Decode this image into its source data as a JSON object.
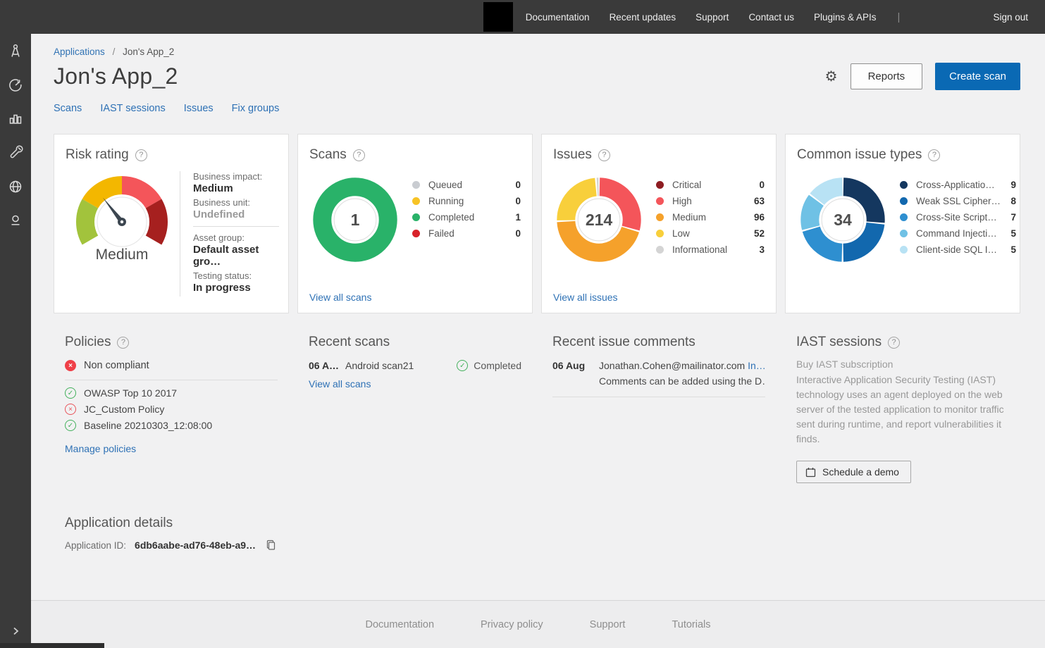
{
  "topnav": {
    "links": [
      "Documentation",
      "Recent updates",
      "Support",
      "Contact us",
      "Plugins & APIs"
    ],
    "signout": "Sign out"
  },
  "breadcrumb": {
    "parent": "Applications",
    "separator": "/",
    "current": "Jon's App_2"
  },
  "header": {
    "title": "Jon's App_2",
    "reports_label": "Reports",
    "create_scan_label": "Create scan"
  },
  "tabs": [
    {
      "label": "Scans"
    },
    {
      "label": "IAST sessions"
    },
    {
      "label": "Issues"
    },
    {
      "label": "Fix groups"
    }
  ],
  "risk_card": {
    "business_impact_label": "Business impact:",
    "business_impact": "Medium",
    "business_unit_label": "Business unit:",
    "business_unit": "Undefined",
    "asset_group_label": "Asset group:",
    "asset_group": "Default asset gro…",
    "testing_status_label": "Testing status:",
    "testing_status": "In progress"
  },
  "links": {
    "view_all_scans": "View all scans",
    "view_all_issues": "View all issues",
    "manage_policies": "Manage policies"
  },
  "policies": {
    "title": "Policies",
    "status": "Non compliant",
    "items": [
      {
        "state": "pass",
        "label": "OWASP Top 10 2017"
      },
      {
        "state": "fail",
        "label": "JC_Custom Policy"
      },
      {
        "state": "pass",
        "label": "Baseline 20210303_12:08:00"
      }
    ]
  },
  "recent_scans": {
    "title": "Recent scans",
    "row": {
      "date": "06 A…",
      "name": "Android scan21",
      "status": "Completed"
    },
    "link": "View all scans"
  },
  "recent_comments": {
    "title": "Recent issue comments",
    "row": {
      "date": "06 Aug",
      "author": "Jonathan.Cohen@mailinator.com",
      "link_text": "In…",
      "comment": "Comments can be added using the D…"
    }
  },
  "iast": {
    "title": "IAST sessions",
    "subtitle": "Buy IAST subscription",
    "description": "Interactive Application Security Testing (IAST) technology uses an agent deployed on the web server of the tested application to monitor traffic sent during runtime, and report vulnerabilities it finds.",
    "button": "Schedule a demo"
  },
  "app_details": {
    "title": "Application details",
    "id_label": "Application ID:",
    "id_value": "6db6aabe-ad76-48eb-a9…"
  },
  "footer": {
    "links": [
      "Documentation",
      "Privacy policy",
      "Support",
      "Tutorials"
    ]
  },
  "colors": {
    "chrome_dark": "#3a3a3a",
    "accent_blue": "#0a69b4",
    "link_blue": "#2e71b5"
  },
  "chart_data": [
    {
      "type": "gauge",
      "title": "Risk rating",
      "label": "Medium",
      "arc_span_deg": 240,
      "needle_deg": -38,
      "segment_colors": [
        "#a2c33c",
        "#f3b700",
        "#f4555a",
        "#a6201f"
      ],
      "segment_names": [
        "low",
        "medium",
        "high",
        "critical"
      ]
    },
    {
      "type": "pie",
      "title": "Scans",
      "total_label": "1",
      "categories": [
        "Queued",
        "Running",
        "Completed",
        "Failed"
      ],
      "values": [
        0,
        0,
        1,
        0
      ],
      "colors": [
        "#c9ccd1",
        "#f7c325",
        "#29b269",
        "#d8222a"
      ],
      "legend_position": "right"
    },
    {
      "type": "pie",
      "title": "Issues",
      "total_label": "214",
      "categories": [
        "Critical",
        "High",
        "Medium",
        "Low",
        "Informational"
      ],
      "values": [
        0,
        63,
        96,
        52,
        3
      ],
      "colors": [
        "#8e1d22",
        "#f4555a",
        "#f5a12b",
        "#f8cf3b",
        "#d4d4d4"
      ],
      "legend_position": "right"
    },
    {
      "type": "pie",
      "title": "Common issue types",
      "total_label": "34",
      "categories": [
        "Cross-Applicatio…",
        "Weak SSL Cipher…",
        "Cross-Site Script…",
        "Command Injecti…",
        "Client-side SQL I…"
      ],
      "values": [
        9,
        8,
        7,
        5,
        5
      ],
      "colors": [
        "#14375f",
        "#1268ae",
        "#2e8fd0",
        "#6fc1e5",
        "#b8e2f4"
      ],
      "legend_position": "right"
    }
  ]
}
